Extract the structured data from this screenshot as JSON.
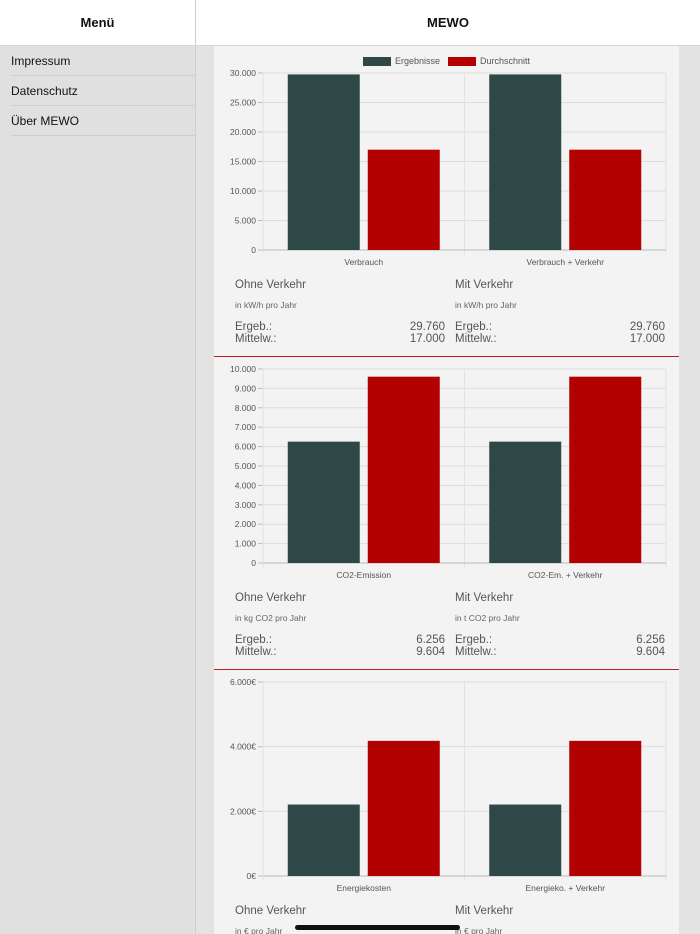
{
  "sidebar": {
    "title": "Menü",
    "items": [
      {
        "label": "Impressum"
      },
      {
        "label": "Datenschutz"
      },
      {
        "label": "Über MEWO"
      }
    ]
  },
  "main": {
    "title": "MEWO"
  },
  "colors": {
    "ergebnisse": "#2e4747",
    "durchschnitt": "#b30000"
  },
  "legend": {
    "ergebnisse": "Ergebnisse",
    "durchschnitt": "Durchschnitt"
  },
  "chart_data": [
    {
      "type": "bar",
      "categories": [
        "Verbrauch",
        "Verbrauch + Verkehr"
      ],
      "series": [
        {
          "name": "Ergebnisse",
          "values": [
            29760,
            29760
          ]
        },
        {
          "name": "Durchschnitt",
          "values": [
            17000,
            17000
          ]
        }
      ],
      "ylim": [
        0,
        30000
      ],
      "yticks": [
        "0",
        "5.000",
        "10.000",
        "15.000",
        "20.000",
        "25.000",
        "30.000"
      ],
      "grid": true,
      "legend": "top-center"
    },
    {
      "type": "bar",
      "categories": [
        "CO2-Emission",
        "CO2-Em. + Verkehr"
      ],
      "series": [
        {
          "name": "Ergebnisse",
          "values": [
            6256,
            6256
          ]
        },
        {
          "name": "Durchschnitt",
          "values": [
            9604,
            9604
          ]
        }
      ],
      "ylim": [
        0,
        10000
      ],
      "yticks": [
        "0",
        "1.000",
        "2.000",
        "3.000",
        "4.000",
        "5.000",
        "6.000",
        "7.000",
        "8.000",
        "9.000",
        "10.000"
      ],
      "grid": true
    },
    {
      "type": "bar",
      "categories": [
        "Energiekosten",
        "Energieko. + Verkehr"
      ],
      "series": [
        {
          "name": "Ergebnisse",
          "values": [
            2210,
            2210
          ]
        },
        {
          "name": "Durchschnitt",
          "values": [
            4180,
            4180
          ]
        }
      ],
      "ylim": [
        0,
        6000
      ],
      "yticks": [
        "0€",
        "2.000€",
        "4.000€",
        "6.000€"
      ],
      "grid": true
    }
  ],
  "stats": [
    {
      "left": {
        "title": "Ohne Verkehr",
        "unit": "in kW/h pro Jahr",
        "ergeb_label": "Ergeb.:",
        "ergeb_value": "29.760",
        "mittel_label": "Mittelw.:",
        "mittel_value": "17.000"
      },
      "right": {
        "title": "Mit Verkehr",
        "unit": "in kW/h pro Jahr",
        "ergeb_label": "Ergeb.:",
        "ergeb_value": "29.760",
        "mittel_label": "Mittelw.:",
        "mittel_value": "17.000"
      }
    },
    {
      "left": {
        "title": "Ohne Verkehr",
        "unit": "in kg CO2 pro Jahr",
        "ergeb_label": "Ergeb.:",
        "ergeb_value": "6.256",
        "mittel_label": "Mittelw.:",
        "mittel_value": "9.604"
      },
      "right": {
        "title": "Mit Verkehr",
        "unit": "in t CO2 pro Jahr",
        "ergeb_label": "Ergeb.:",
        "ergeb_value": "6.256",
        "mittel_label": "Mittelw.:",
        "mittel_value": "9.604"
      }
    },
    {
      "left": {
        "title": "Ohne Verkehr",
        "unit": "in € pro Jahr"
      },
      "right": {
        "title": "Mit Verkehr",
        "unit": "in € pro Jahr"
      }
    }
  ]
}
